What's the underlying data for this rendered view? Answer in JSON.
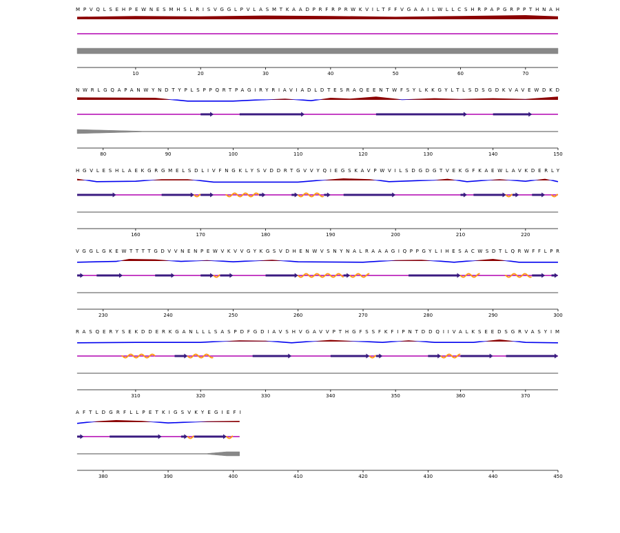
{
  "rows": [
    {
      "xlim": [
        1,
        75
      ],
      "xticks": [
        10,
        20,
        30,
        40,
        50,
        60,
        70
      ],
      "sequence": "MPVQLSEHPEWNESMHSLRISVGGLPVLASMTKAADPRFRPRWKVILTFFVGAAILWLLCSHRPAPGRPPTHNAH",
      "disorder": [
        [
          1,
          0.6
        ],
        [
          10,
          0.8
        ],
        [
          20,
          0.7
        ],
        [
          30,
          0.9
        ],
        [
          40,
          0.8
        ],
        [
          50,
          0.6
        ],
        [
          60,
          0.8
        ],
        [
          70,
          1
        ],
        [
          75,
          0.7
        ]
      ],
      "coverage": [
        [
          1,
          4
        ],
        [
          75,
          4
        ]
      ],
      "strands": [],
      "helices": []
    },
    {
      "xlim": [
        76,
        150
      ],
      "xticks": [
        80,
        90,
        100,
        110,
        120,
        130,
        140,
        150
      ],
      "sequence": "NWRLGQAPANWYNDTYPLSPPQRTPAGIRYRIAVIADLDTESRAQEENTWFSYLKKGYLTLSDSGDKVAVEWDKD",
      "disorder": [
        [
          76,
          0.6
        ],
        [
          88,
          0.5
        ],
        [
          93,
          -0.3
        ],
        [
          100,
          -0.3
        ],
        [
          108,
          0.3
        ],
        [
          112,
          -0.2
        ],
        [
          115,
          0.5
        ],
        [
          118,
          0.3
        ],
        [
          122,
          0.8
        ],
        [
          126,
          0.1
        ],
        [
          131,
          0.4
        ],
        [
          135,
          0.2
        ],
        [
          140,
          0.4
        ],
        [
          145,
          0.2
        ],
        [
          150,
          0.8
        ]
      ],
      "coverage": [
        [
          76,
          3
        ],
        [
          86,
          0.5
        ],
        [
          150,
          0.5
        ]
      ],
      "strands": [
        [
          95,
          97
        ],
        [
          101,
          111
        ],
        [
          122,
          136
        ],
        [
          140,
          146
        ]
      ],
      "helices": []
    },
    {
      "xlim": [
        151,
        225
      ],
      "xticks": [
        160,
        170,
        180,
        190,
        200,
        210,
        220
      ],
      "sequence": "HGVLESHLAEKGRGMELSDLIVFNGKLYSVDDRTGVVYQIEGSKAVPWVILSDGDGTVEKGFKAEWLAVKDERLY",
      "disorder": [
        [
          151,
          0.4
        ],
        [
          154,
          -0.3
        ],
        [
          160,
          -0.2
        ],
        [
          164,
          0.3
        ],
        [
          168,
          0.3
        ],
        [
          172,
          -0.4
        ],
        [
          185,
          -0.4
        ],
        [
          192,
          0.5
        ],
        [
          196,
          0.3
        ],
        [
          199,
          -0.3
        ],
        [
          206,
          0.1
        ],
        [
          208,
          0.4
        ],
        [
          211,
          -0.3
        ],
        [
          216,
          0.3
        ],
        [
          220,
          -0.2
        ],
        [
          223,
          0.4
        ],
        [
          225,
          -0.3
        ]
      ],
      "coverage": [
        [
          151,
          0.5
        ],
        [
          225,
          0.5
        ]
      ],
      "strands": [
        [
          151,
          157
        ],
        [
          164,
          169
        ],
        [
          170,
          172
        ],
        [
          179,
          180
        ],
        [
          184,
          185
        ],
        [
          189,
          190
        ],
        [
          192,
          200
        ],
        [
          210,
          211
        ],
        [
          212,
          217
        ],
        [
          218,
          219
        ],
        [
          221,
          223
        ]
      ],
      "helices": [
        [
          169,
          170
        ],
        [
          174,
          179
        ],
        [
          185,
          189
        ],
        [
          217,
          218
        ],
        [
          224,
          225
        ]
      ]
    },
    {
      "xlim": [
        226,
        300
      ],
      "xticks": [
        230,
        240,
        250,
        260,
        270,
        280,
        290,
        300
      ],
      "sequence": "VGGLGKEWTTTTGDVVNENPEWVKVVGYKGSVDHENWVSNYNALRAAAGIQPPGYLIHESACWSDTLQRWFFLPR",
      "disorder": [
        [
          226,
          -0.3
        ],
        [
          232,
          -0.1
        ],
        [
          234,
          0.5
        ],
        [
          238,
          0.4
        ],
        [
          242,
          -0.1
        ],
        [
          246,
          0.2
        ],
        [
          250,
          -0.2
        ],
        [
          256,
          0.3
        ],
        [
          260,
          -0.2
        ],
        [
          270,
          -0.3
        ],
        [
          275,
          0.2
        ],
        [
          279,
          0.3
        ],
        [
          284,
          -0.3
        ],
        [
          290,
          0.5
        ],
        [
          294,
          -0.3
        ],
        [
          300,
          -0.3
        ]
      ],
      "coverage": [
        [
          226,
          0.5
        ],
        [
          300,
          0.5
        ]
      ],
      "strands": [
        [
          226,
          227
        ],
        [
          229,
          233
        ],
        [
          238,
          241
        ],
        [
          245,
          247
        ],
        [
          248,
          250
        ],
        [
          255,
          260
        ],
        [
          267,
          268
        ],
        [
          277,
          285
        ],
        [
          296,
          298
        ],
        [
          299,
          300
        ]
      ],
      "helices": [
        [
          247,
          248
        ],
        [
          260,
          267
        ],
        [
          268,
          271
        ],
        [
          285,
          288
        ],
        [
          292,
          296
        ]
      ]
    },
    {
      "xlim": [
        301,
        375
      ],
      "xticks": [
        310,
        320,
        330,
        340,
        350,
        360,
        370
      ],
      "sequence": "RASQERYSEKDDERKGANLLLSASPDFGDIAVSHVGAVVPTHGFSSFKFIPNTDDQIIVALKSEEDSGRVASYIM",
      "disorder": [
        [
          301,
          -0.3
        ],
        [
          310,
          -0.2
        ],
        [
          320,
          -0.2
        ],
        [
          326,
          0.3
        ],
        [
          330,
          0.2
        ],
        [
          334,
          -0.3
        ],
        [
          340,
          0.4
        ],
        [
          344,
          0.1
        ],
        [
          348,
          -0.2
        ],
        [
          352,
          0.3
        ],
        [
          356,
          -0.2
        ],
        [
          362,
          -0.2
        ],
        [
          366,
          0.5
        ],
        [
          370,
          -0.2
        ],
        [
          375,
          -0.3
        ]
      ],
      "coverage": [
        [
          301,
          0.5
        ],
        [
          375,
          0.5
        ]
      ],
      "strands": [
        [
          316,
          318
        ],
        [
          328,
          334
        ],
        [
          340,
          346
        ],
        [
          347,
          348
        ],
        [
          355,
          357
        ],
        [
          360,
          365
        ],
        [
          367,
          375
        ]
      ],
      "helices": [
        [
          308,
          313
        ],
        [
          318,
          322
        ],
        [
          346,
          347
        ],
        [
          357,
          360
        ]
      ]
    },
    {
      "xlim": [
        376,
        450
      ],
      "xticks": [
        380,
        390,
        400,
        410,
        420,
        430,
        440,
        450
      ],
      "sequence": "AFTLDGRFLLPETKIGSVKYEGIEFI",
      "disorder": [
        [
          376,
          -0.3
        ],
        [
          379,
          0.2
        ],
        [
          382,
          0.5
        ],
        [
          386,
          0.3
        ],
        [
          390,
          -0.2
        ],
        [
          396,
          0.2
        ],
        [
          401,
          0.3
        ]
      ],
      "coverage": [
        [
          376,
          0.5
        ],
        [
          396,
          0.5
        ],
        [
          399,
          3
        ],
        [
          401,
          3
        ]
      ],
      "strands": [
        [
          376,
          377
        ],
        [
          381,
          389
        ],
        [
          392,
          393
        ],
        [
          394,
          399
        ]
      ],
      "helices": [
        [
          393,
          394
        ],
        [
          399,
          400
        ]
      ]
    }
  ]
}
